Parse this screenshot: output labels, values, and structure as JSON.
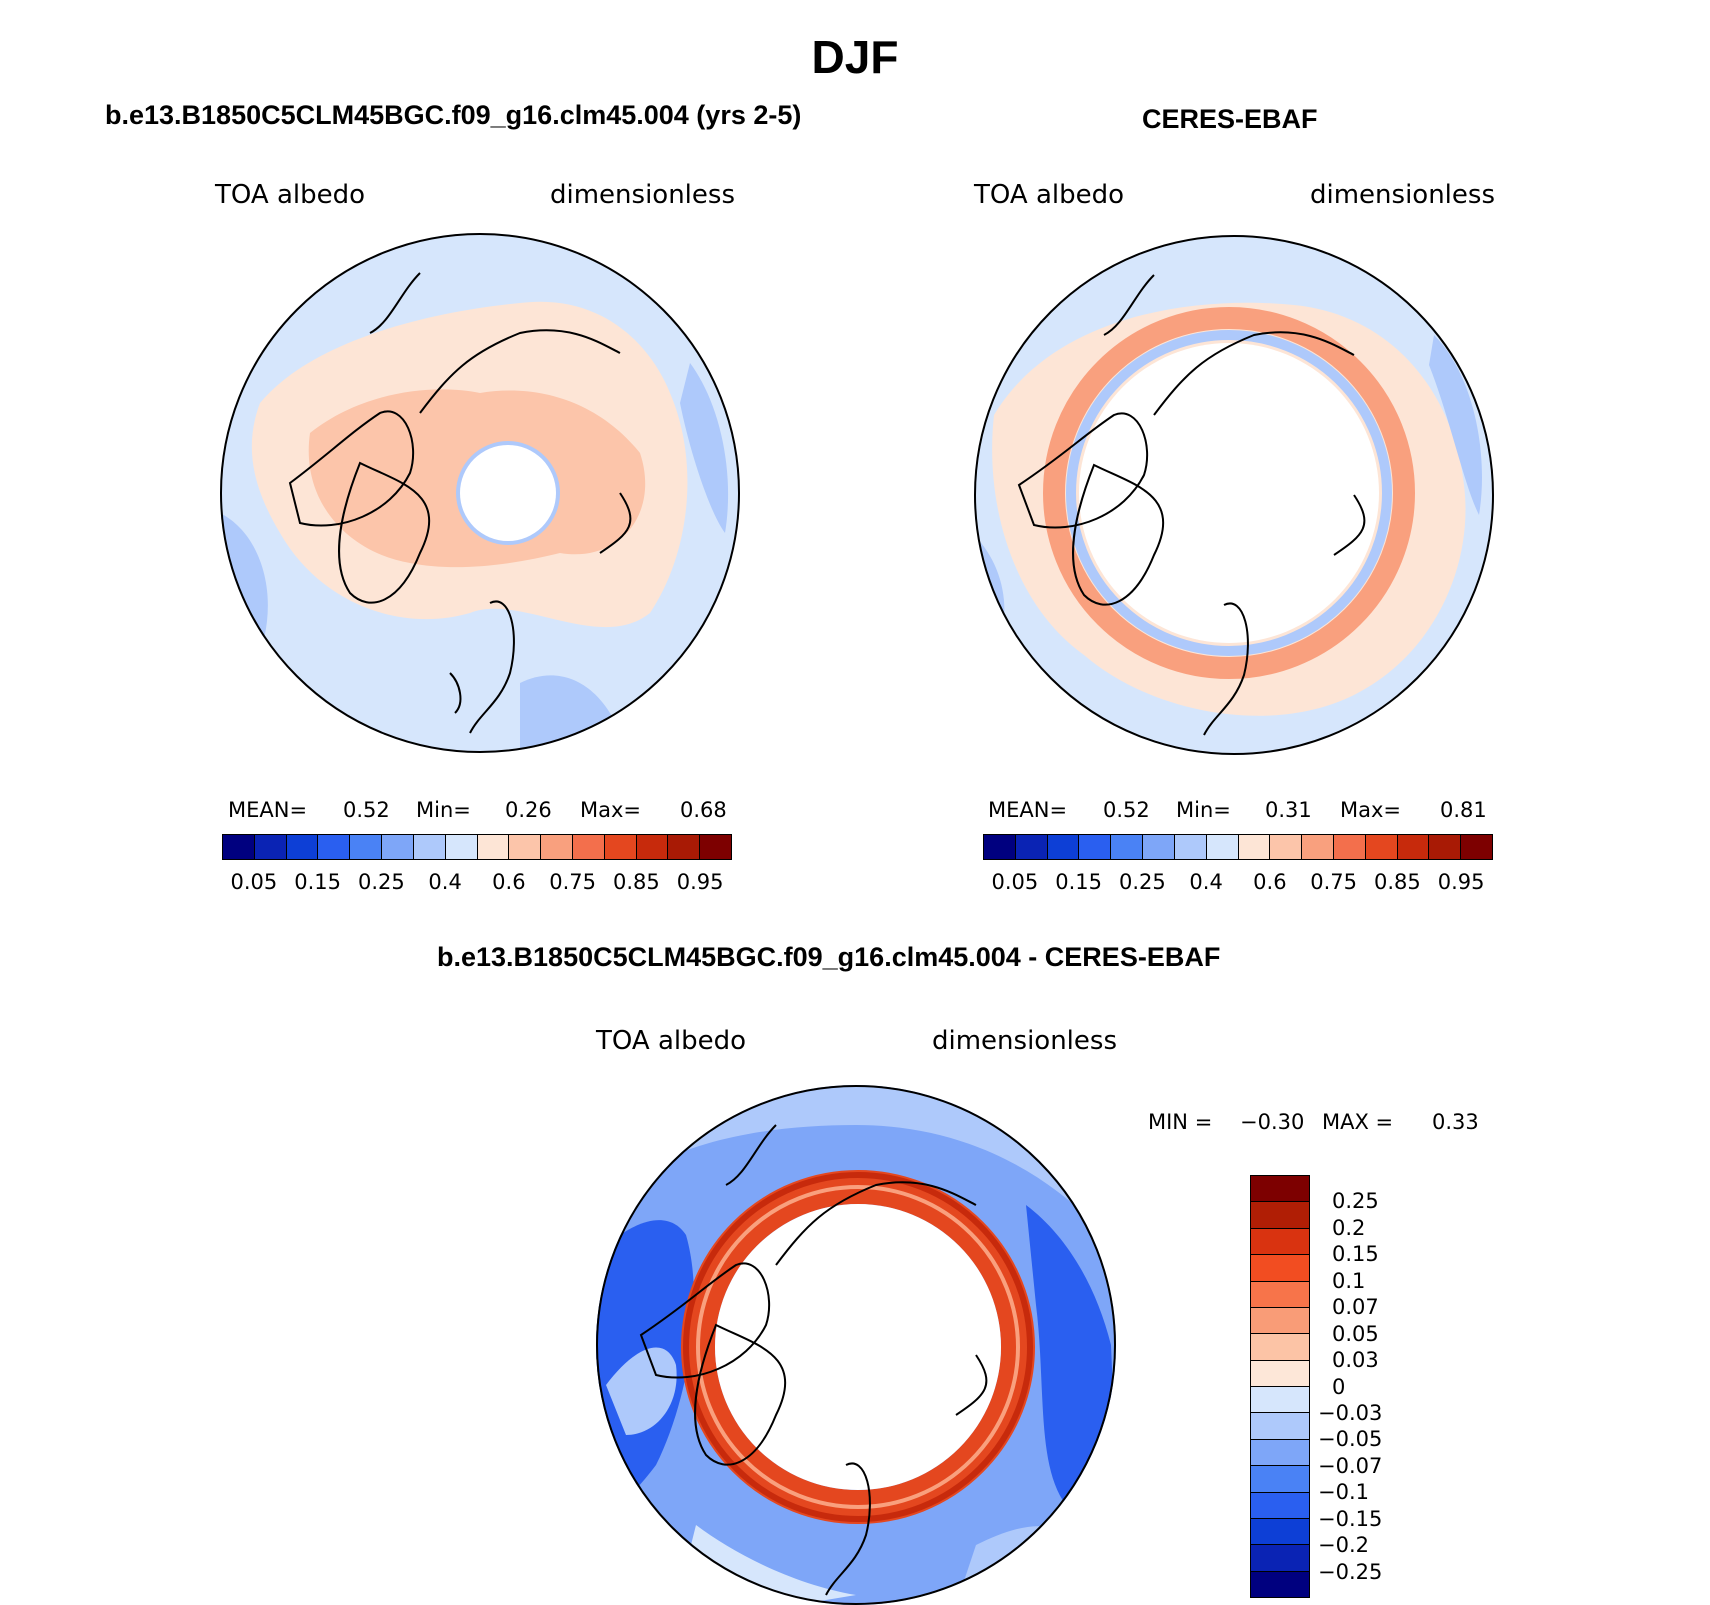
{
  "page_title": "DJF",
  "panels": {
    "model": {
      "title": "b.e13.B1850C5CLM45BGC.f09_g16.clm45.004 (yrs 2-5)",
      "variable": "TOA albedo",
      "units": "dimensionless",
      "stats": {
        "mean_label": "MEAN=",
        "mean": "0.52",
        "min_label": "Min=",
        "min": "0.26",
        "max_label": "Max=",
        "max": "0.68"
      }
    },
    "obs": {
      "title": "CERES-EBAF",
      "variable": "TOA albedo",
      "units": "dimensionless",
      "stats": {
        "mean_label": "MEAN=",
        "mean": "0.52",
        "min_label": "Min=",
        "min": "0.31",
        "max_label": "Max=",
        "max": "0.81"
      }
    },
    "diff": {
      "title": "b.e13.B1850C5CLM45BGC.f09_g16.clm45.004 - CERES-EBAF",
      "variable": "TOA albedo",
      "units": "dimensionless",
      "stats": {
        "min_label": "MIN =",
        "min": "−0.30",
        "max_label": "MAX =",
        "max": "0.33"
      }
    }
  },
  "colorbar_abs": {
    "colors": [
      "#00007f",
      "#0a23b4",
      "#0d3fd6",
      "#2a5ff0",
      "#4a82f5",
      "#7ea6f8",
      "#aec9fb",
      "#d6e6fc",
      "#fde5d6",
      "#fcc5aa",
      "#f9a07e",
      "#f36f4c",
      "#e4471f",
      "#c72a0c",
      "#a81a05",
      "#7d0000"
    ],
    "ticks": [
      "0.05",
      "0.15",
      "0.25",
      "0.4",
      "0.6",
      "0.75",
      "0.85",
      "0.95"
    ]
  },
  "colorbar_diff": {
    "colors": [
      "#7d0000",
      "#b01e05",
      "#d93310",
      "#f24d21",
      "#f7744a",
      "#f99c77",
      "#fcc4a6",
      "#fde7d8",
      "#d6e6fc",
      "#aec9fb",
      "#7ea6f8",
      "#4a82f5",
      "#2a5ff0",
      "#0d3fd6",
      "#0a23b4",
      "#00007f"
    ],
    "ticks": [
      "0.25",
      "0.2",
      "0.15",
      "0.1",
      "0.07",
      "0.05",
      "0.03",
      "0",
      "−0.03",
      "−0.05",
      "−0.07",
      "−0.1",
      "−0.15",
      "−0.2",
      "−0.25"
    ]
  }
}
